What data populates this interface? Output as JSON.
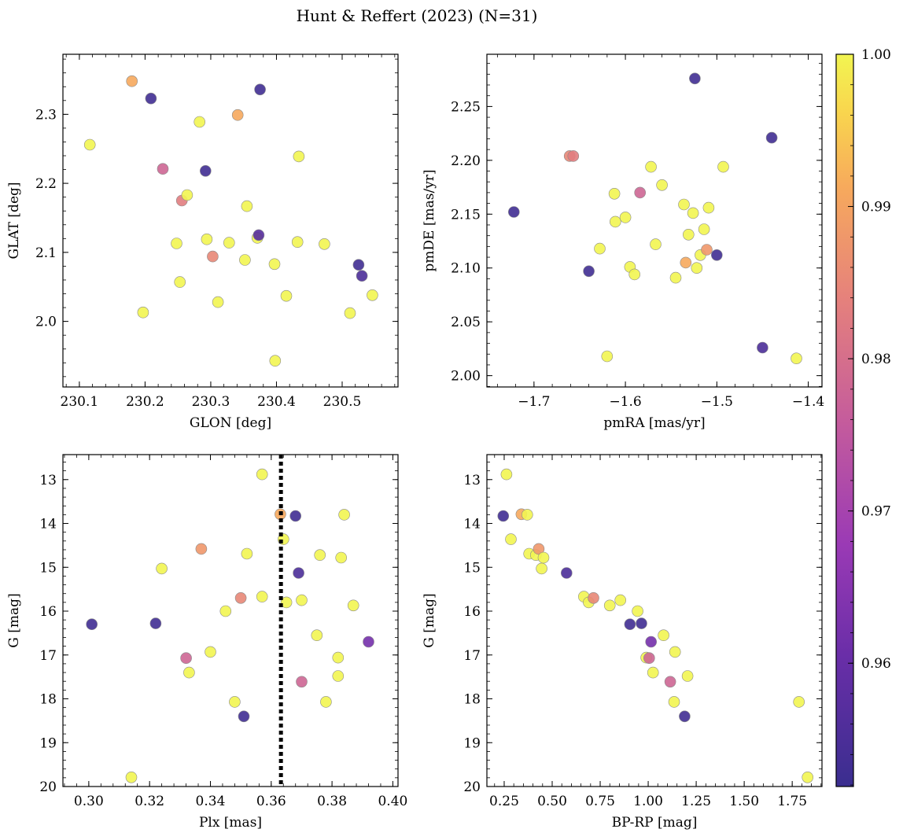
{
  "figure": {
    "title": "Hunt & Reffert (2023) (N=31)"
  },
  "chart_data": [
    {
      "type": "scatter",
      "xlabel": "GLON [deg]",
      "ylabel": "GLAT [deg]",
      "xlim": [
        230.075,
        230.585
      ],
      "ylim": [
        1.905,
        2.387
      ],
      "xticks": [
        230.1,
        230.2,
        230.3,
        230.4,
        230.5
      ],
      "xtick_labels": [
        "230.1",
        "230.2",
        "230.3",
        "230.4",
        "230.5"
      ],
      "yticks": [
        2.0,
        2.1,
        2.2,
        2.3
      ],
      "ytick_labels": [
        "2.0",
        "2.1",
        "2.2",
        "2.3"
      ],
      "y_inverted": false,
      "points": [
        {
          "x": 230.116,
          "y": 2.256,
          "c": 1.0
        },
        {
          "x": 230.18,
          "y": 2.348,
          "c": 0.991
        },
        {
          "x": 230.209,
          "y": 2.323,
          "c": 0.953
        },
        {
          "x": 230.197,
          "y": 2.013,
          "c": 1.0
        },
        {
          "x": 230.227,
          "y": 2.221,
          "c": 0.978
        },
        {
          "x": 230.248,
          "y": 2.113,
          "c": 1.0
        },
        {
          "x": 230.253,
          "y": 2.057,
          "c": 1.0
        },
        {
          "x": 230.256,
          "y": 2.175,
          "c": 0.983
        },
        {
          "x": 230.264,
          "y": 2.183,
          "c": 1.0
        },
        {
          "x": 230.283,
          "y": 2.289,
          "c": 1.0
        },
        {
          "x": 230.292,
          "y": 2.218,
          "c": 0.953
        },
        {
          "x": 230.294,
          "y": 2.119,
          "c": 1.0
        },
        {
          "x": 230.303,
          "y": 2.094,
          "c": 0.985
        },
        {
          "x": 230.311,
          "y": 2.028,
          "c": 1.0
        },
        {
          "x": 230.328,
          "y": 2.114,
          "c": 1.0
        },
        {
          "x": 230.341,
          "y": 2.299,
          "c": 0.991
        },
        {
          "x": 230.352,
          "y": 2.089,
          "c": 1.0
        },
        {
          "x": 230.355,
          "y": 2.167,
          "c": 1.0
        },
        {
          "x": 230.371,
          "y": 2.121,
          "c": 1.0
        },
        {
          "x": 230.373,
          "y": 2.125,
          "c": 0.957
        },
        {
          "x": 230.375,
          "y": 2.336,
          "c": 0.953
        },
        {
          "x": 230.397,
          "y": 2.083,
          "c": 1.0
        },
        {
          "x": 230.398,
          "y": 1.943,
          "c": 1.0
        },
        {
          "x": 230.415,
          "y": 2.037,
          "c": 1.0
        },
        {
          "x": 230.432,
          "y": 2.115,
          "c": 1.0
        },
        {
          "x": 230.434,
          "y": 2.239,
          "c": 1.0
        },
        {
          "x": 230.473,
          "y": 2.112,
          "c": 1.0
        },
        {
          "x": 230.512,
          "y": 2.012,
          "c": 1.0
        },
        {
          "x": 230.525,
          "y": 2.082,
          "c": 0.953
        },
        {
          "x": 230.53,
          "y": 2.066,
          "c": 0.955
        },
        {
          "x": 230.546,
          "y": 2.038,
          "c": 1.0
        }
      ]
    },
    {
      "type": "scatter",
      "xlabel": "pmRA [mas/yr]",
      "ylabel": "pmDE [mas/yr]",
      "xlim": [
        -1.7515,
        -1.385
      ],
      "ylim": [
        1.9895,
        2.2985
      ],
      "xticks": [
        -1.7,
        -1.6,
        -1.5,
        -1.4
      ],
      "xtick_labels": [
        "−1.7",
        "−1.6",
        "−1.5",
        "−1.4"
      ],
      "yticks": [
        2.0,
        2.05,
        2.1,
        2.15,
        2.2,
        2.25
      ],
      "ytick_labels": [
        "2.00",
        "2.05",
        "2.10",
        "2.15",
        "2.20",
        "2.25"
      ],
      "y_inverted": false,
      "points": [
        {
          "x": -1.722,
          "y": 2.152,
          "c": 0.953
        },
        {
          "x": -1.661,
          "y": 2.204,
          "c": 0.985
        },
        {
          "x": -1.657,
          "y": 2.204,
          "c": 0.983
        },
        {
          "x": -1.64,
          "y": 2.097,
          "c": 0.953
        },
        {
          "x": -1.628,
          "y": 2.118,
          "c": 1.0
        },
        {
          "x": -1.62,
          "y": 2.018,
          "c": 1.0
        },
        {
          "x": -1.612,
          "y": 2.169,
          "c": 1.0
        },
        {
          "x": -1.611,
          "y": 2.143,
          "c": 1.0
        },
        {
          "x": -1.6,
          "y": 2.147,
          "c": 1.0
        },
        {
          "x": -1.595,
          "y": 2.101,
          "c": 1.0
        },
        {
          "x": -1.59,
          "y": 2.094,
          "c": 1.0
        },
        {
          "x": -1.584,
          "y": 2.17,
          "c": 0.978
        },
        {
          "x": -1.572,
          "y": 2.194,
          "c": 1.0
        },
        {
          "x": -1.567,
          "y": 2.122,
          "c": 1.0
        },
        {
          "x": -1.56,
          "y": 2.177,
          "c": 1.0
        },
        {
          "x": -1.545,
          "y": 2.091,
          "c": 1.0
        },
        {
          "x": -1.536,
          "y": 2.159,
          "c": 1.0
        },
        {
          "x": -1.534,
          "y": 2.105,
          "c": 0.991
        },
        {
          "x": -1.531,
          "y": 2.131,
          "c": 1.0
        },
        {
          "x": -1.526,
          "y": 2.151,
          "c": 1.0
        },
        {
          "x": -1.524,
          "y": 2.276,
          "c": 0.953
        },
        {
          "x": -1.522,
          "y": 2.1,
          "c": 1.0
        },
        {
          "x": -1.518,
          "y": 2.112,
          "c": 1.0
        },
        {
          "x": -1.514,
          "y": 2.136,
          "c": 1.0
        },
        {
          "x": -1.511,
          "y": 2.117,
          "c": 0.988
        },
        {
          "x": -1.509,
          "y": 2.156,
          "c": 1.0
        },
        {
          "x": -1.5,
          "y": 2.112,
          "c": 0.953
        },
        {
          "x": -1.493,
          "y": 2.194,
          "c": 1.0
        },
        {
          "x": -1.45,
          "y": 2.026,
          "c": 0.955
        },
        {
          "x": -1.44,
          "y": 2.221,
          "c": 0.953
        },
        {
          "x": -1.413,
          "y": 2.016,
          "c": 1.0
        }
      ]
    },
    {
      "type": "scatter",
      "xlabel": "Plx [mas]",
      "ylabel": "G [mag]",
      "xlim": [
        0.2915,
        0.4017
      ],
      "ylim": [
        12.43,
        20.0
      ],
      "xticks": [
        0.3,
        0.32,
        0.34,
        0.36,
        0.38,
        0.4
      ],
      "xtick_labels": [
        "0.30",
        "0.32",
        "0.34",
        "0.36",
        "0.38",
        "0.40"
      ],
      "yticks": [
        13,
        14,
        15,
        16,
        17,
        18,
        19,
        20
      ],
      "ytick_labels": [
        "13",
        "14",
        "15",
        "16",
        "17",
        "18",
        "19",
        "20"
      ],
      "y_inverted": true,
      "vline": 0.3632,
      "points": [
        {
          "x": 0.301,
          "y": 16.3,
          "c": 0.953
        },
        {
          "x": 0.314,
          "y": 19.79,
          "c": 1.0
        },
        {
          "x": 0.322,
          "y": 16.28,
          "c": 0.953
        },
        {
          "x": 0.324,
          "y": 15.03,
          "c": 1.0
        },
        {
          "x": 0.332,
          "y": 17.07,
          "c": 0.978
        },
        {
          "x": 0.333,
          "y": 17.4,
          "c": 1.0
        },
        {
          "x": 0.337,
          "y": 14.58,
          "c": 0.988
        },
        {
          "x": 0.34,
          "y": 16.93,
          "c": 1.0
        },
        {
          "x": 0.345,
          "y": 16.0,
          "c": 1.0
        },
        {
          "x": 0.348,
          "y": 18.07,
          "c": 1.0
        },
        {
          "x": 0.35,
          "y": 15.7,
          "c": 0.985
        },
        {
          "x": 0.351,
          "y": 18.4,
          "c": 0.953
        },
        {
          "x": 0.352,
          "y": 14.69,
          "c": 1.0
        },
        {
          "x": 0.357,
          "y": 12.88,
          "c": 1.0
        },
        {
          "x": 0.357,
          "y": 15.67,
          "c": 1.0
        },
        {
          "x": 0.363,
          "y": 13.79,
          "c": 0.991
        },
        {
          "x": 0.364,
          "y": 14.36,
          "c": 1.0
        },
        {
          "x": 0.365,
          "y": 15.8,
          "c": 1.0
        },
        {
          "x": 0.368,
          "y": 13.83,
          "c": 0.953
        },
        {
          "x": 0.369,
          "y": 15.13,
          "c": 0.955
        },
        {
          "x": 0.37,
          "y": 15.75,
          "c": 1.0
        },
        {
          "x": 0.37,
          "y": 17.61,
          "c": 0.978
        },
        {
          "x": 0.375,
          "y": 16.55,
          "c": 1.0
        },
        {
          "x": 0.376,
          "y": 14.72,
          "c": 1.0
        },
        {
          "x": 0.378,
          "y": 18.07,
          "c": 1.0
        },
        {
          "x": 0.382,
          "y": 17.06,
          "c": 1.0
        },
        {
          "x": 0.382,
          "y": 17.48,
          "c": 1.0
        },
        {
          "x": 0.383,
          "y": 14.78,
          "c": 1.0
        },
        {
          "x": 0.384,
          "y": 13.8,
          "c": 1.0
        },
        {
          "x": 0.387,
          "y": 15.87,
          "c": 1.0
        },
        {
          "x": 0.392,
          "y": 16.7,
          "c": 0.962
        }
      ]
    },
    {
      "type": "scatter",
      "xlabel": "BP-RP [mag]",
      "ylabel": "G [mag]",
      "xlim": [
        0.16,
        1.905
      ],
      "ylim": [
        12.43,
        20.0
      ],
      "xticks": [
        0.25,
        0.5,
        0.75,
        1.0,
        1.25,
        1.5,
        1.75
      ],
      "xtick_labels": [
        "0.25",
        "0.50",
        "0.75",
        "1.00",
        "1.25",
        "1.50",
        "1.75"
      ],
      "yticks": [
        13,
        14,
        15,
        16,
        17,
        18,
        19,
        20
      ],
      "ytick_labels": [
        "13",
        "14",
        "15",
        "16",
        "17",
        "18",
        "19",
        "20"
      ],
      "y_inverted": true,
      "points": [
        {
          "x": 0.245,
          "y": 13.83,
          "c": 0.953
        },
        {
          "x": 0.262,
          "y": 12.88,
          "c": 1.0
        },
        {
          "x": 0.285,
          "y": 14.36,
          "c": 1.0
        },
        {
          "x": 0.34,
          "y": 13.79,
          "c": 0.991
        },
        {
          "x": 0.37,
          "y": 13.8,
          "c": 1.0
        },
        {
          "x": 0.38,
          "y": 14.69,
          "c": 1.0
        },
        {
          "x": 0.415,
          "y": 14.72,
          "c": 1.0
        },
        {
          "x": 0.43,
          "y": 14.58,
          "c": 0.988
        },
        {
          "x": 0.445,
          "y": 15.03,
          "c": 1.0
        },
        {
          "x": 0.455,
          "y": 14.78,
          "c": 1.0
        },
        {
          "x": 0.575,
          "y": 15.13,
          "c": 0.955
        },
        {
          "x": 0.665,
          "y": 15.67,
          "c": 1.0
        },
        {
          "x": 0.69,
          "y": 15.8,
          "c": 1.0
        },
        {
          "x": 0.715,
          "y": 15.7,
          "c": 0.985
        },
        {
          "x": 0.8,
          "y": 15.87,
          "c": 1.0
        },
        {
          "x": 0.855,
          "y": 15.75,
          "c": 1.0
        },
        {
          "x": 0.905,
          "y": 16.3,
          "c": 0.953
        },
        {
          "x": 0.945,
          "y": 16.0,
          "c": 1.0
        },
        {
          "x": 0.965,
          "y": 16.28,
          "c": 0.953
        },
        {
          "x": 0.99,
          "y": 17.06,
          "c": 1.0
        },
        {
          "x": 1.005,
          "y": 17.07,
          "c": 0.978
        },
        {
          "x": 1.015,
          "y": 16.7,
          "c": 0.962
        },
        {
          "x": 1.025,
          "y": 17.4,
          "c": 1.0
        },
        {
          "x": 1.08,
          "y": 16.55,
          "c": 1.0
        },
        {
          "x": 1.115,
          "y": 17.61,
          "c": 0.978
        },
        {
          "x": 1.135,
          "y": 18.07,
          "c": 1.0
        },
        {
          "x": 1.14,
          "y": 16.93,
          "c": 1.0
        },
        {
          "x": 1.19,
          "y": 18.4,
          "c": 0.953
        },
        {
          "x": 1.205,
          "y": 17.48,
          "c": 1.0
        },
        {
          "x": 1.785,
          "y": 18.07,
          "c": 1.0
        },
        {
          "x": 1.83,
          "y": 19.79,
          "c": 1.0
        }
      ]
    }
  ],
  "colorbar": {
    "colormap": "plasma",
    "range": [
      0.9519,
      1.0
    ],
    "ticks": [
      0.96,
      0.97,
      0.98,
      0.99,
      1.0
    ],
    "tick_labels": [
      "0.96",
      "0.97",
      "0.98",
      "0.99",
      "1.00"
    ]
  },
  "colors": {
    "marker_edge": "#8a8a8a",
    "vline": "#000000"
  }
}
